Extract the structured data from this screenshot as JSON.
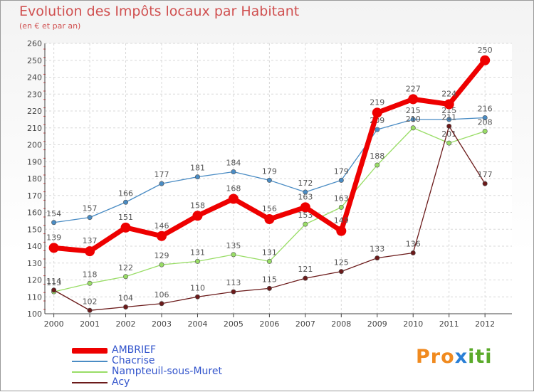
{
  "title": "Evolution des Impôts locaux par Habitant",
  "subtitle": "(en € et par an)",
  "logo": {
    "letters": [
      "P",
      "r",
      "o",
      "x",
      "i",
      "t",
      "i"
    ],
    "colors": [
      "#f08a1f",
      "#f08a1f",
      "#f08a1f",
      "#2a7fd6",
      "#5aaa2a",
      "#5aaa2a",
      "#5aaa2a"
    ]
  },
  "chart_data": {
    "type": "line",
    "title": "Evolution des Impôts locaux par Habitant",
    "xlabel": "",
    "ylabel": "(en € et par an)",
    "x": [
      "2000",
      "2001",
      "2002",
      "2003",
      "2004",
      "2005",
      "2006",
      "2007",
      "2008",
      "2009",
      "2010",
      "2011",
      "2012"
    ],
    "ylim": [
      100,
      260
    ],
    "yticks": [
      100,
      110,
      120,
      130,
      140,
      150,
      160,
      170,
      180,
      190,
      200,
      210,
      220,
      230,
      240,
      250,
      260
    ],
    "grid": true,
    "legend_position": "bottom-left",
    "series": [
      {
        "name": "Chacrise",
        "color": "#4a8cc4",
        "values": [
          154,
          157,
          166,
          177,
          181,
          184,
          179,
          172,
          179,
          209,
          215,
          215,
          216
        ],
        "labels": [
          "154",
          "157",
          "166",
          "177",
          "181",
          "184",
          "179",
          "172",
          "179",
          "209",
          "215",
          "215",
          "216"
        ]
      },
      {
        "name": "Nampteuil-sous-Muret",
        "color": "#99dd66",
        "values": [
          113,
          118,
          122,
          129,
          131,
          135,
          131,
          153,
          163,
          188,
          210,
          201,
          208
        ],
        "labels": [
          "113",
          "118",
          "122",
          "129",
          "131",
          "135",
          "131",
          "153",
          "163",
          "188",
          "210",
          "201",
          "208"
        ]
      },
      {
        "name": "Acy",
        "color": "#6b1a1a",
        "values": [
          114,
          102,
          104,
          106,
          110,
          113,
          115,
          121,
          125,
          133,
          136,
          211,
          177
        ],
        "labels": [
          "114",
          "102",
          "104",
          "106",
          "110",
          "113",
          "115",
          "121",
          "125",
          "133",
          "136",
          "211",
          "177"
        ]
      },
      {
        "name": "AMBRIEF",
        "color": "#ee0000",
        "values": [
          139,
          137,
          151,
          146,
          158,
          168,
          156,
          163,
          149,
          219,
          227,
          224,
          250
        ],
        "labels": [
          "139",
          "137",
          "151",
          "146",
          "158",
          "168",
          "156",
          "163",
          "149",
          "219",
          "227",
          "224",
          "250"
        ]
      }
    ],
    "legend": [
      "AMBRIEF",
      "Chacrise",
      "Nampteuil-sous-Muret",
      "Acy"
    ]
  }
}
